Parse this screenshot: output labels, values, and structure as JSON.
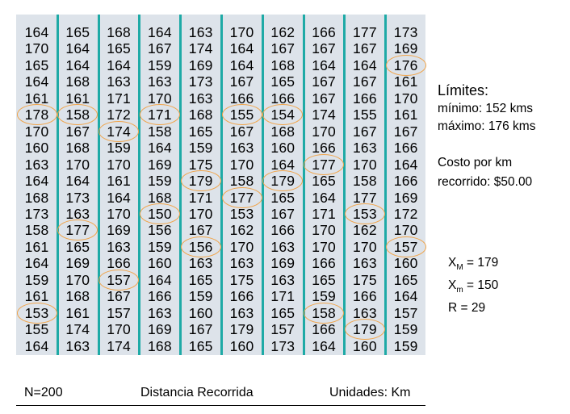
{
  "table": {
    "rows": [
      [
        164,
        165,
        168,
        164,
        163,
        170,
        162,
        166,
        177,
        173
      ],
      [
        170,
        164,
        165,
        167,
        174,
        164,
        167,
        167,
        167,
        169
      ],
      [
        165,
        164,
        164,
        159,
        169,
        164,
        168,
        164,
        164,
        176
      ],
      [
        164,
        168,
        163,
        163,
        173,
        167,
        165,
        167,
        167,
        161
      ],
      [
        161,
        161,
        171,
        170,
        163,
        166,
        166,
        167,
        166,
        170
      ],
      [
        178,
        158,
        172,
        171,
        168,
        155,
        154,
        174,
        155,
        161
      ],
      [
        170,
        167,
        174,
        158,
        165,
        167,
        168,
        170,
        167,
        167
      ],
      [
        160,
        168,
        159,
        164,
        159,
        163,
        160,
        166,
        163,
        166
      ],
      [
        163,
        170,
        170,
        169,
        175,
        170,
        164,
        177,
        170,
        164
      ],
      [
        164,
        164,
        161,
        159,
        179,
        158,
        179,
        165,
        158,
        166
      ],
      [
        168,
        173,
        164,
        168,
        171,
        177,
        165,
        164,
        177,
        169
      ],
      [
        173,
        163,
        170,
        150,
        170,
        153,
        167,
        171,
        153,
        172
      ],
      [
        158,
        177,
        169,
        156,
        167,
        162,
        166,
        170,
        162,
        170
      ],
      [
        161,
        165,
        163,
        159,
        156,
        170,
        163,
        170,
        170,
        157
      ],
      [
        164,
        169,
        166,
        160,
        163,
        163,
        169,
        166,
        163,
        160
      ],
      [
        159,
        170,
        157,
        164,
        165,
        175,
        163,
        165,
        175,
        165
      ],
      [
        161,
        168,
        167,
        166,
        159,
        166,
        171,
        159,
        166,
        164
      ],
      [
        153,
        161,
        157,
        163,
        160,
        163,
        165,
        158,
        163,
        157
      ],
      [
        155,
        174,
        170,
        169,
        167,
        179,
        157,
        166,
        179,
        159
      ],
      [
        164,
        163,
        174,
        168,
        165,
        160,
        173,
        164,
        160,
        159
      ]
    ],
    "highlights": [
      [
        5,
        0
      ],
      [
        5,
        1
      ],
      [
        5,
        3
      ],
      [
        5,
        5
      ],
      [
        5,
        6
      ],
      [
        6,
        2
      ],
      [
        2,
        9
      ],
      [
        8,
        7
      ],
      [
        9,
        4
      ],
      [
        9,
        6
      ],
      [
        10,
        5
      ],
      [
        11,
        3
      ],
      [
        11,
        8
      ],
      [
        12,
        1
      ],
      [
        13,
        4
      ],
      [
        13,
        9
      ],
      [
        15,
        2
      ],
      [
        17,
        0
      ],
      [
        17,
        7
      ],
      [
        18,
        8
      ]
    ]
  },
  "limits": {
    "title": "Límites:",
    "min_label": "mínimo: 152 kms",
    "max_label": "máximo: 176 kms"
  },
  "cost": {
    "line1": "Costo por km",
    "line2": "recorrido: $50.00"
  },
  "stats": {
    "xmax_sym": "X",
    "xmax_sub": "M",
    "xmax_val": " = 179",
    "xmin_sym": "X",
    "xmin_sub": "m",
    "xmin_val": " = 150",
    "range": "R = 29"
  },
  "footer": {
    "n": "N=200",
    "title": "Distancia Recorrida",
    "units": "Unidades:  Km"
  }
}
